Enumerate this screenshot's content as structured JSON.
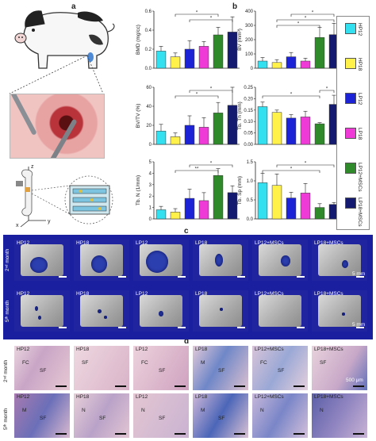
{
  "panel_labels": {
    "a": "a",
    "b": "b",
    "c": "c",
    "d": "d"
  },
  "colors": {
    "HP12": "#33e0f0",
    "HP18": "#fff04a",
    "LP12": "#1c22d6",
    "LP18": "#f03ad8",
    "LP12+MSCs": "#2f8a2a",
    "LP18+MSCs": "#141a70"
  },
  "legend": {
    "items": [
      "HP12",
      "HP18",
      "LP12",
      "LP18",
      "LP12+MSCs",
      "LP18+MSCs"
    ]
  },
  "scheme_axes": {
    "z": "z",
    "x": "x",
    "y": "y"
  },
  "chart_data": [
    {
      "type": "bar",
      "panel": "a",
      "ylabel": "BMD (mg/cc)",
      "categories": [
        "HP12",
        "HP18",
        "LP12",
        "LP18",
        "LP12+MSCs",
        "LP18+MSCs"
      ],
      "values": [
        0.18,
        0.12,
        0.2,
        0.23,
        0.35,
        0.38
      ],
      "errors": [
        0.05,
        0.04,
        0.09,
        0.05,
        0.08,
        0.16
      ],
      "ylim": [
        0,
        0.6
      ],
      "yticks": [
        "0.0",
        "0.2",
        "0.4",
        "0.6"
      ],
      "annotations": [
        "*",
        "*"
      ]
    },
    {
      "type": "bar",
      "panel": "a",
      "ylabel": "BV/TV (%)",
      "categories": [
        "HP12",
        "HP18",
        "LP12",
        "LP18",
        "LP12+MSCs",
        "LP18+MSCs"
      ],
      "values": [
        14,
        8,
        20,
        18,
        33,
        41
      ],
      "errors": [
        7,
        4,
        10,
        10,
        11,
        19
      ],
      "ylim": [
        0,
        60
      ],
      "yticks": [
        "0",
        "20",
        "40",
        "60"
      ],
      "annotations": [
        "*",
        "*"
      ]
    },
    {
      "type": "bar",
      "panel": "a",
      "ylabel": "Tb. N (1/mm)",
      "categories": [
        "HP12",
        "HP18",
        "LP12",
        "LP18",
        "LP12+MSCs",
        "LP18+MSCs"
      ],
      "values": [
        0.8,
        0.6,
        1.8,
        1.6,
        3.8,
        2.3
      ],
      "errors": [
        0.3,
        0.3,
        0.8,
        0.7,
        0.6,
        0.6
      ],
      "ylim": [
        0,
        5
      ],
      "yticks": [
        "0",
        "1",
        "2",
        "3",
        "4",
        "5"
      ],
      "annotations": [
        "**",
        "*"
      ]
    },
    {
      "type": "bar",
      "panel": "b",
      "ylabel": "BV (mm³)",
      "categories": [
        "HP12",
        "HP18",
        "LP12",
        "LP18",
        "LP12+MSCs",
        "LP18+MSCs"
      ],
      "values": [
        50,
        40,
        80,
        50,
        215,
        235
      ],
      "errors": [
        25,
        20,
        30,
        20,
        70,
        80
      ],
      "ylim": [
        0,
        400
      ],
      "yticks": [
        "0",
        "100",
        "200",
        "300",
        "400"
      ],
      "annotations": [
        "*",
        "*",
        "*"
      ]
    },
    {
      "type": "bar",
      "panel": "b",
      "ylabel": "Tb. Th (mm)",
      "categories": [
        "HP12",
        "HP18",
        "LP12",
        "LP18",
        "LP12+MSCs",
        "LP18+MSCs"
      ],
      "values": [
        0.165,
        0.14,
        0.115,
        0.12,
        0.09,
        0.175
      ],
      "errors": [
        0.02,
        0.01,
        0.015,
        0.025,
        0.005,
        0.04
      ],
      "ylim": [
        0,
        0.25
      ],
      "yticks": [
        "0.00",
        "0.05",
        "0.10",
        "0.15",
        "0.20",
        "0.25"
      ],
      "annotations": [
        "*",
        "*"
      ]
    },
    {
      "type": "bar",
      "panel": "b",
      "ylabel": "Tb. Sp (mm)",
      "categories": [
        "HP12",
        "HP18",
        "LP12",
        "LP18",
        "LP12+MSCs",
        "LP18+MSCs"
      ],
      "values": [
        0.95,
        0.88,
        0.55,
        0.68,
        0.3,
        0.38
      ],
      "errors": [
        0.25,
        0.3,
        0.15,
        0.25,
        0.1,
        0.05
      ],
      "ylim": [
        0,
        1.5
      ],
      "yticks": [
        "0.0",
        "0.5",
        "1.0",
        "1.5"
      ],
      "annotations": [
        "*",
        "*"
      ]
    }
  ],
  "panel_c": {
    "rows": [
      "2ⁿᵈ month",
      "5ᵗʰ month"
    ],
    "cells": [
      "HP12",
      "HP18",
      "LP12",
      "LP18",
      "LP12+MSCs",
      "LP18+MSCs"
    ],
    "scale": "5 mm"
  },
  "panel_d": {
    "rows": [
      "2ⁿᵈ month",
      "5ᵗʰ month"
    ],
    "cells": [
      "HP12",
      "HP18",
      "LP12",
      "LP18",
      "LP12+MSCs",
      "LP18+MSCs"
    ],
    "scale": "500 μm",
    "tissue_labels_row1": [
      [
        "FC",
        "SF"
      ],
      [
        "SF"
      ],
      [
        "FC",
        "SF"
      ],
      [
        "M",
        "SF"
      ],
      [
        "FC",
        "SF"
      ],
      [
        "SF"
      ]
    ],
    "tissue_labels_row2": [
      [
        "M",
        "SF"
      ],
      [
        "N",
        "SF"
      ],
      [
        "N",
        "SF"
      ],
      [
        "M",
        "SF"
      ],
      [
        "N"
      ],
      [
        "N"
      ]
    ]
  }
}
